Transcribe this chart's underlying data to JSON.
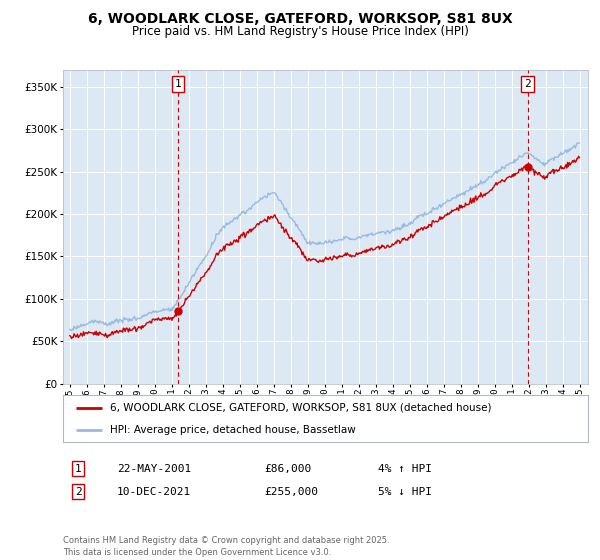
{
  "title": "6, WOODLARK CLOSE, GATEFORD, WORKSOP, S81 8UX",
  "subtitle": "Price paid vs. HM Land Registry's House Price Index (HPI)",
  "legend_line1": "6, WOODLARK CLOSE, GATEFORD, WORKSOP, S81 8UX (detached house)",
  "legend_line2": "HPI: Average price, detached house, Bassetlaw",
  "sale1_date": "22-MAY-2001",
  "sale1_price": 86000,
  "sale1_label": "4% ↑ HPI",
  "sale2_date": "10-DEC-2021",
  "sale2_price": 255000,
  "sale2_label": "5% ↓ HPI",
  "footer": "Contains HM Land Registry data © Crown copyright and database right 2025.\nThis data is licensed under the Open Government Licence v3.0.",
  "price_line_color": "#cc0000",
  "hpi_line_color": "#99bbdd",
  "plot_bg_color": "#dce9f5",
  "ylim": [
    0,
    370000
  ],
  "yticks": [
    0,
    50000,
    100000,
    150000,
    200000,
    250000,
    300000,
    350000
  ],
  "sale1_x": 2001.38,
  "sale2_x": 2021.94
}
